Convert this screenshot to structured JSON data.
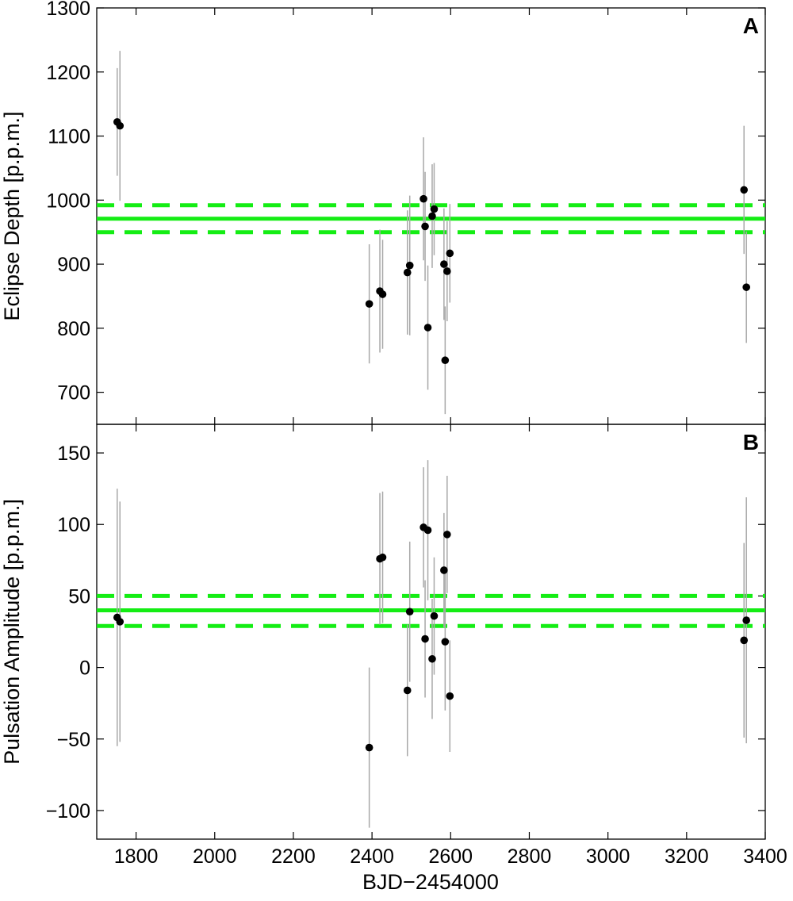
{
  "chart_data": [
    {
      "type": "scatter",
      "panel_label": "A",
      "xlabel": "BJD−2454000",
      "ylabel": "Eclipse Depth [p.p.m.]",
      "xlim": [
        1700,
        3400
      ],
      "ylim": [
        650,
        1300
      ],
      "xticks": [
        1800,
        2000,
        2200,
        2400,
        2600,
        2800,
        3000,
        3200,
        3400
      ],
      "yticks": [
        700,
        800,
        900,
        1000,
        1100,
        1200,
        1300
      ],
      "grid": false,
      "points": [
        {
          "x": 1752,
          "y": 1122,
          "err": 84
        },
        {
          "x": 1759,
          "y": 1116,
          "err": 117
        },
        {
          "x": 2393,
          "y": 838,
          "err": 93
        },
        {
          "x": 2420,
          "y": 858,
          "err": 96
        },
        {
          "x": 2427,
          "y": 853,
          "err": 85
        },
        {
          "x": 2490,
          "y": 887,
          "err": 97
        },
        {
          "x": 2496,
          "y": 898,
          "err": 109
        },
        {
          "x": 2531,
          "y": 1002,
          "err": 96
        },
        {
          "x": 2535,
          "y": 959,
          "err": 85
        },
        {
          "x": 2542,
          "y": 801,
          "err": 97
        },
        {
          "x": 2553,
          "y": 975,
          "err": 81
        },
        {
          "x": 2558,
          "y": 986,
          "err": 72
        },
        {
          "x": 2583,
          "y": 900,
          "err": 87
        },
        {
          "x": 2586,
          "y": 750,
          "err": 84
        },
        {
          "x": 2591,
          "y": 889,
          "err": 78
        },
        {
          "x": 2598,
          "y": 917,
          "err": 77
        },
        {
          "x": 3346,
          "y": 1016,
          "err": 100
        },
        {
          "x": 3352,
          "y": 864,
          "err": 87
        }
      ],
      "reference": {
        "mean": 971,
        "lower": 950,
        "upper": 992
      },
      "colors": {
        "marker": "#000000",
        "errorbar": "#a8a8a8",
        "reference": "#14ed14"
      }
    },
    {
      "type": "scatter",
      "panel_label": "B",
      "xlabel": "BJD−2454000",
      "ylabel": "Pulsation Amplitude [p.p.m.]",
      "xlim": [
        1700,
        3400
      ],
      "ylim": [
        -120,
        170
      ],
      "xticks": [
        1800,
        2000,
        2200,
        2400,
        2600,
        2800,
        3000,
        3200,
        3400
      ],
      "yticks": [
        -100,
        -50,
        0,
        50,
        100,
        150
      ],
      "grid": false,
      "points": [
        {
          "x": 1752,
          "y": 35,
          "err": 90
        },
        {
          "x": 1759,
          "y": 32,
          "err": 84
        },
        {
          "x": 2393,
          "y": -56,
          "err": 56
        },
        {
          "x": 2420,
          "y": 76,
          "err": 46
        },
        {
          "x": 2427,
          "y": 77,
          "err": 46
        },
        {
          "x": 2490,
          "y": -16,
          "err": 46
        },
        {
          "x": 2496,
          "y": 39,
          "err": 49
        },
        {
          "x": 2531,
          "y": 98,
          "err": 42
        },
        {
          "x": 2535,
          "y": 20,
          "err": 41
        },
        {
          "x": 2542,
          "y": 96,
          "err": 49
        },
        {
          "x": 2553,
          "y": 6,
          "err": 42
        },
        {
          "x": 2558,
          "y": 36,
          "err": 41
        },
        {
          "x": 2583,
          "y": 68,
          "err": 40
        },
        {
          "x": 2586,
          "y": 18,
          "err": 48
        },
        {
          "x": 2591,
          "y": 93,
          "err": 41
        },
        {
          "x": 2598,
          "y": -20,
          "err": 39
        },
        {
          "x": 3346,
          "y": 19,
          "err": 68
        },
        {
          "x": 3352,
          "y": 33,
          "err": 86
        }
      ],
      "reference": {
        "mean": 40,
        "lower": 29,
        "upper": 50
      },
      "colors": {
        "marker": "#000000",
        "errorbar": "#a8a8a8",
        "reference": "#14ed14"
      }
    }
  ]
}
